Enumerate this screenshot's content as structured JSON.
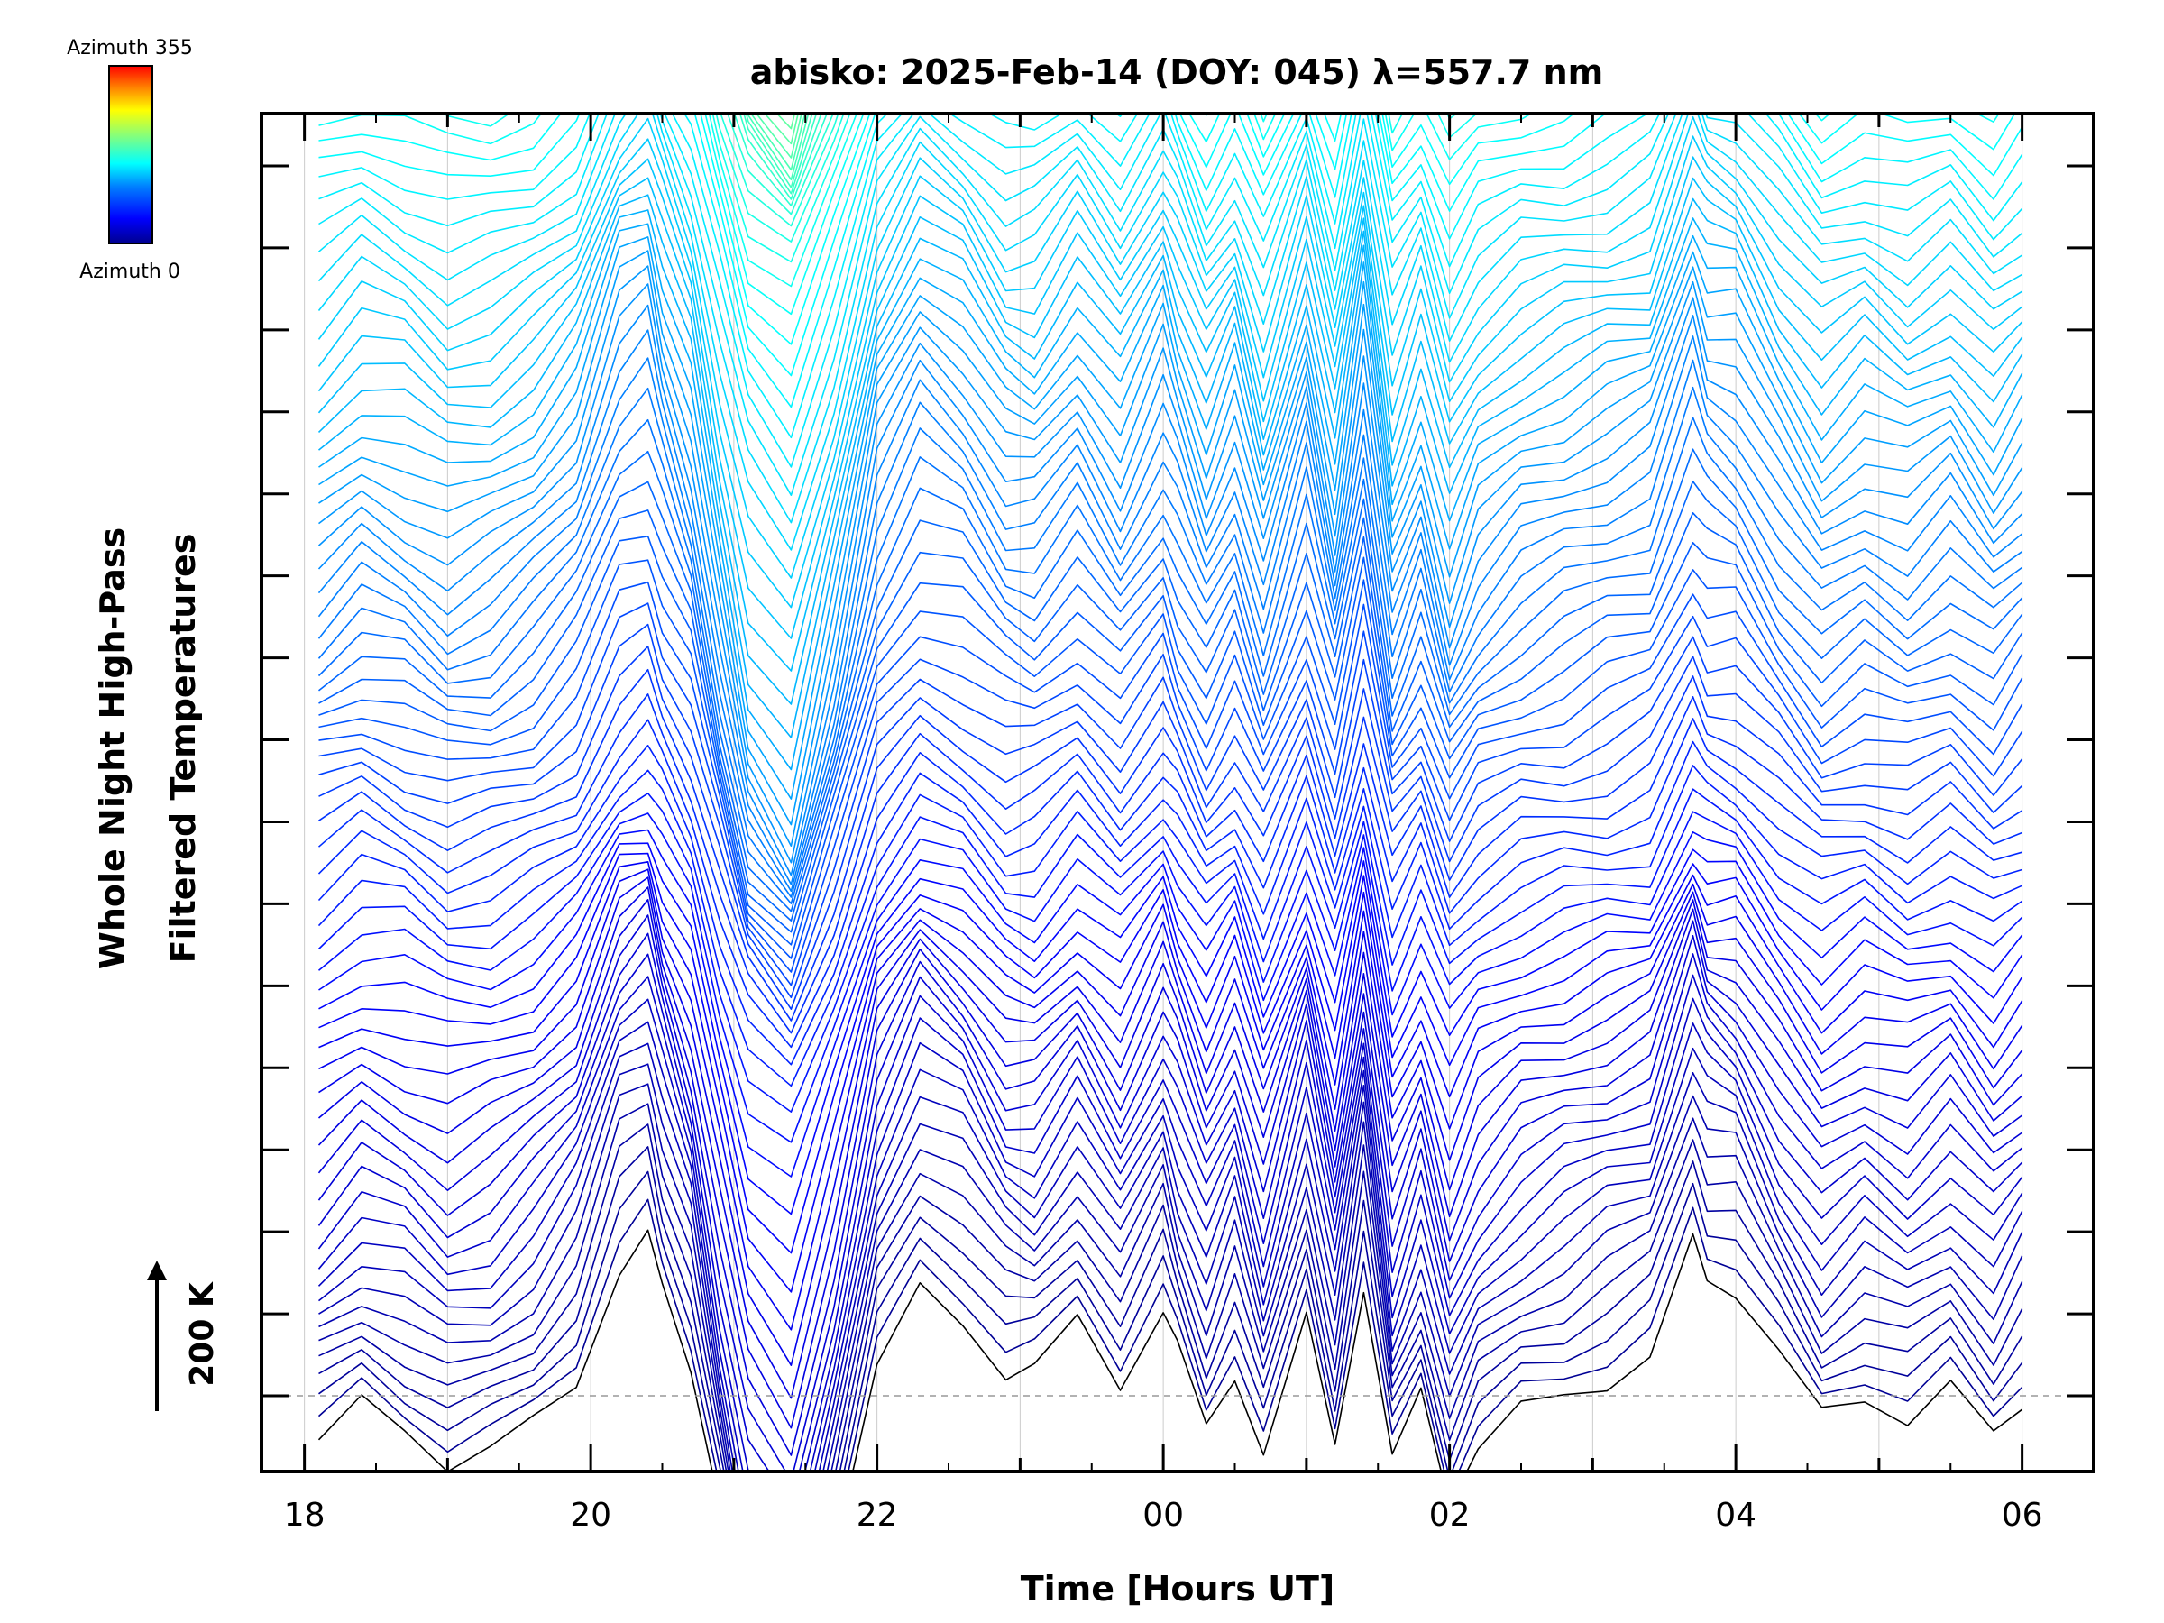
{
  "colors": {
    "axis": "#000000",
    "grid": "#cccccc",
    "baseline": "#999999",
    "colormap": [
      "#00008f",
      "#0000ff",
      "#0080ff",
      "#00ffff",
      "#80ff80",
      "#ffff00",
      "#ff8000",
      "#ff0000"
    ]
  },
  "colorbar": {
    "top_label": "Azimuth  355",
    "bottom_label": "Azimuth  0",
    "azimuth_min": 0,
    "azimuth_max": 355
  },
  "scale_bar": {
    "label": "200 K",
    "value_k": 200
  },
  "chart_data": {
    "type": "line",
    "title": "abisko: 2025-Feb-14 (DOY: 045) λ=557.7 nm",
    "xlabel": "Time [Hours UT]",
    "ylabel_line1": "Whole Night High-Pass",
    "ylabel_line2": "Filtered Temperatures",
    "x_unit": "hours UT since 18:00",
    "xlim": [
      17.7,
      30.5
    ],
    "x_ticks": [
      18,
      20,
      22,
      24,
      26,
      28,
      30
    ],
    "x_tick_labels": [
      "18",
      "20",
      "22",
      "00",
      "02",
      "04",
      "06"
    ],
    "y_major_tick_count": 16,
    "grid": true,
    "legend": "colorbar at top-left",
    "n_traces": 144,
    "azimuth_step_deg": 2.5,
    "offset_per_trace_k": 30,
    "baseline_k": 0,
    "series_x": [
      18.1,
      18.4,
      18.7,
      19.0,
      19.3,
      19.6,
      19.9,
      20.2,
      20.4,
      20.5,
      20.7,
      20.9,
      21.1,
      21.4,
      21.7,
      22.0,
      22.3,
      22.6,
      22.9,
      23.1,
      23.4,
      23.7,
      24.0,
      24.1,
      24.3,
      24.5,
      24.7,
      25.0,
      25.2,
      25.4,
      25.6,
      25.8,
      26.0,
      26.2,
      26.5,
      26.8,
      27.1,
      27.4,
      27.7,
      27.8,
      28.0,
      28.3,
      28.6,
      28.9,
      29.2,
      29.5,
      29.8,
      30.0
    ],
    "series_base_k": [
      -90,
      -30,
      -60,
      -110,
      -90,
      -40,
      40,
      230,
      270,
      180,
      50,
      -200,
      -420,
      -520,
      -250,
      60,
      190,
      140,
      40,
      30,
      120,
      20,
      150,
      80,
      -40,
      60,
      -100,
      130,
      -80,
      190,
      -130,
      -10,
      -180,
      -80,
      -20,
      10,
      40,
      70,
      260,
      200,
      180,
      60,
      -40,
      10,
      -30,
      20,
      -60,
      0
    ]
  }
}
